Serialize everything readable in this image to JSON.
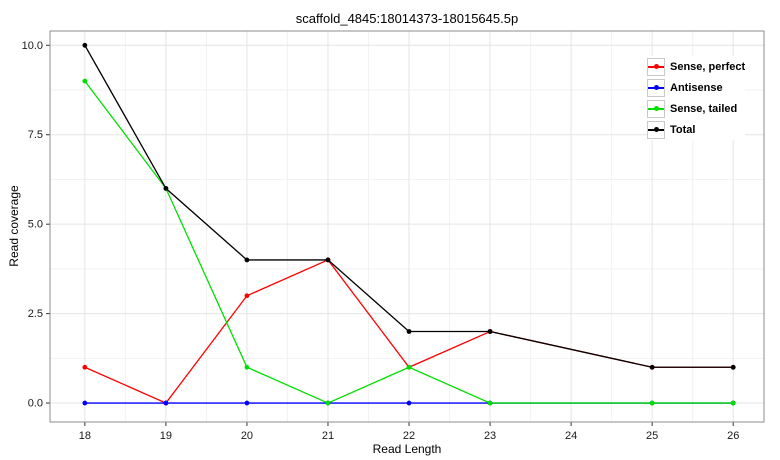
{
  "chart_data": {
    "type": "line",
    "title": "scaffold_4845:18014373-18015645.5p",
    "xlabel": "Read Length",
    "ylabel": "Read coverage",
    "x": [
      18,
      19,
      20,
      21,
      22,
      23,
      25,
      26
    ],
    "series": [
      {
        "name": "Sense, perfect",
        "color": "#ff0000",
        "values": [
          1,
          0,
          3,
          4,
          1,
          2,
          1,
          1
        ]
      },
      {
        "name": "Antisense",
        "color": "#0000ff",
        "values": [
          0,
          0,
          0,
          0,
          0,
          0,
          0,
          0
        ]
      },
      {
        "name": "Sense, tailed",
        "color": "#00e000",
        "values": [
          9,
          6,
          1,
          0,
          1,
          0,
          0,
          0
        ]
      },
      {
        "name": "Total",
        "color": "#000000",
        "values": [
          10,
          6,
          4,
          4,
          2,
          2,
          1,
          1
        ]
      }
    ],
    "x_ticks": [
      18,
      19,
      20,
      21,
      22,
      23,
      24,
      25,
      26
    ],
    "y_ticks": [
      {
        "value": 0,
        "label": "0.0"
      },
      {
        "value": 2.5,
        "label": "2.5"
      },
      {
        "value": 5,
        "label": "5.0"
      },
      {
        "value": 7.5,
        "label": "7.5"
      },
      {
        "value": 10,
        "label": "10.0"
      }
    ],
    "xlim": [
      17.57,
      26.38
    ],
    "ylim": [
      -0.53,
      10.4
    ],
    "grid": true,
    "legend_position": "top-right-inside"
  },
  "theme": {
    "panel_background": "#ffffff",
    "panel_border": "#8c8c8c",
    "grid_major": "#e4e4e4",
    "grid_minor": "#f2f2f2",
    "tick_mark": "#333333",
    "tick_label": "#1a1a1a"
  }
}
